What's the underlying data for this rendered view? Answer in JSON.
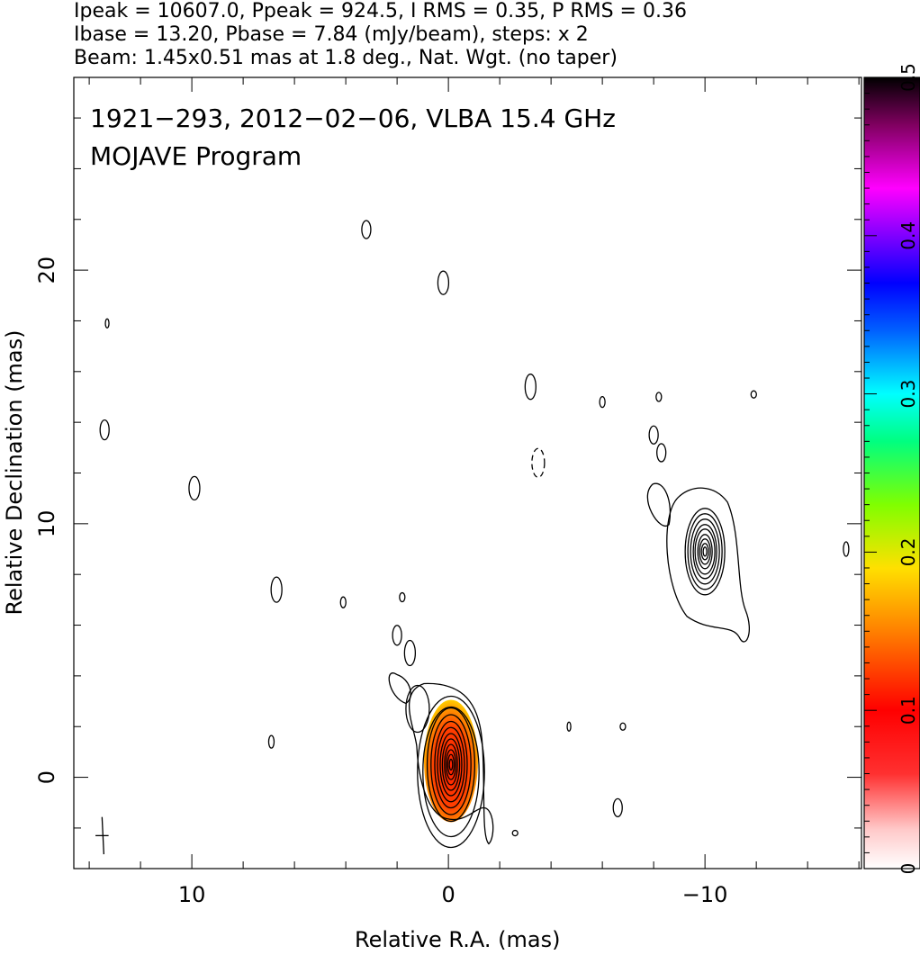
{
  "header": {
    "line1": "Ipeak = 10607.0, Ppeak = 924.5, I RMS = 0.35, P RMS = 0.36",
    "line2": "Ibase = 13.20, Pbase = 7.84 (mJy/beam), steps: x 2",
    "line3": "Beam: 1.45x0.51 mas at 1.8 deg., Nat. Wgt. (no taper)"
  },
  "annotations": {
    "source": "1921−293, 2012−02−06, VLBA 15.4 GHz",
    "program": "MOJAVE Program"
  },
  "chart_data": {
    "type": "contour",
    "xlabel": "Relative R.A. (mas)",
    "ylabel": "Relative Declination (mas)",
    "xlim": [
      14.6,
      -16.1
    ],
    "ylim": [
      -3.6,
      27.6
    ],
    "x_ticks": [
      10,
      0,
      -10
    ],
    "x_tick_labels": [
      "10",
      "0",
      "−10"
    ],
    "y_ticks": [
      0,
      10,
      20
    ],
    "y_tick_labels": [
      "0",
      "10",
      "20"
    ],
    "colorbar": {
      "range": [
        0,
        0.5
      ],
      "ticks": [
        0,
        0.1,
        0.2,
        0.3,
        0.4,
        0.5
      ],
      "tick_labels": [
        "0",
        "0.1",
        "0.2",
        "0.3",
        "0.4",
        "0.5"
      ]
    },
    "core": {
      "x": -0.1,
      "y": 0.5
    },
    "components": [
      {
        "x": -10.0,
        "y": 8.9
      }
    ],
    "beam": {
      "major": 1.45,
      "minor": 0.51,
      "pa": 1.8
    }
  }
}
